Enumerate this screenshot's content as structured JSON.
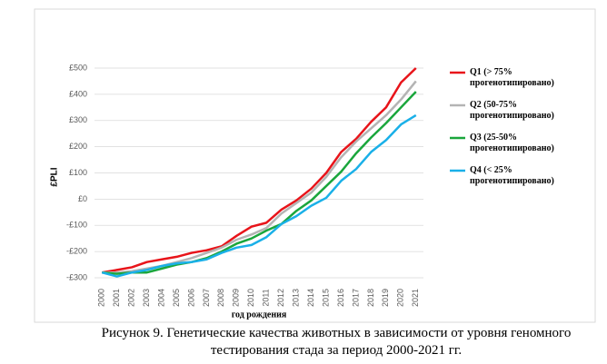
{
  "chart_data": {
    "type": "line",
    "xlabel": "год рождения",
    "ylabel": "£PLI",
    "caption": "Рисунок 9. Генетические качества животных в зависимости от уровня геномного тестирования стада за период 2000-2021 гг.",
    "categories": [
      "2000",
      "2001",
      "2002",
      "2003",
      "2004",
      "2005",
      "2006",
      "2007",
      "2008",
      "2009",
      "2010",
      "2011",
      "2012",
      "2013",
      "2014",
      "2015",
      "2016",
      "2017",
      "2018",
      "2019",
      "2020",
      "2021"
    ],
    "series": [
      {
        "name": "Q1 (> 75% прогенотипировано)",
        "color": "#e8141a",
        "values": [
          -280,
          -270,
          -260,
          -240,
          -230,
          -220,
          -205,
          -195,
          -180,
          -140,
          -105,
          -90,
          -40,
          -5,
          40,
          100,
          180,
          230,
          295,
          350,
          445,
          500
        ]
      },
      {
        "name": "Q2 (50-75% прогенотипировано)",
        "color": "#b4b4b4",
        "values": [
          -280,
          -280,
          -275,
          -265,
          -255,
          -240,
          -225,
          -205,
          -185,
          -155,
          -135,
          -110,
          -55,
          -15,
          25,
          85,
          160,
          220,
          270,
          320,
          380,
          450
        ]
      },
      {
        "name": "Q3 (25-50% прогенотипировано)",
        "color": "#1aa63c",
        "values": [
          -280,
          -285,
          -280,
          -280,
          -265,
          -250,
          -240,
          -225,
          -200,
          -170,
          -150,
          -120,
          -95,
          -45,
          -5,
          50,
          105,
          175,
          235,
          290,
          350,
          410
        ]
      },
      {
        "name": "Q4 (< 25% прогенотипировано)",
        "color": "#1ab0e8",
        "values": [
          -280,
          -295,
          -280,
          -270,
          -255,
          -245,
          -240,
          -230,
          -205,
          -185,
          -175,
          -145,
          -95,
          -65,
          -25,
          5,
          70,
          115,
          180,
          225,
          285,
          320
        ]
      }
    ],
    "ylim": [
      -300,
      500
    ],
    "yticks": [
      {
        "value": 500,
        "label": "£500"
      },
      {
        "value": 400,
        "label": "£400"
      },
      {
        "value": 300,
        "label": "£300"
      },
      {
        "value": 200,
        "label": "£200"
      },
      {
        "value": 100,
        "label": "£100"
      },
      {
        "value": 0,
        "label": "£0"
      },
      {
        "value": -100,
        "label": "-£100"
      },
      {
        "value": -200,
        "label": "-£200"
      },
      {
        "value": -300,
        "label": "-£300"
      }
    ],
    "grid": true,
    "legend": "right"
  }
}
